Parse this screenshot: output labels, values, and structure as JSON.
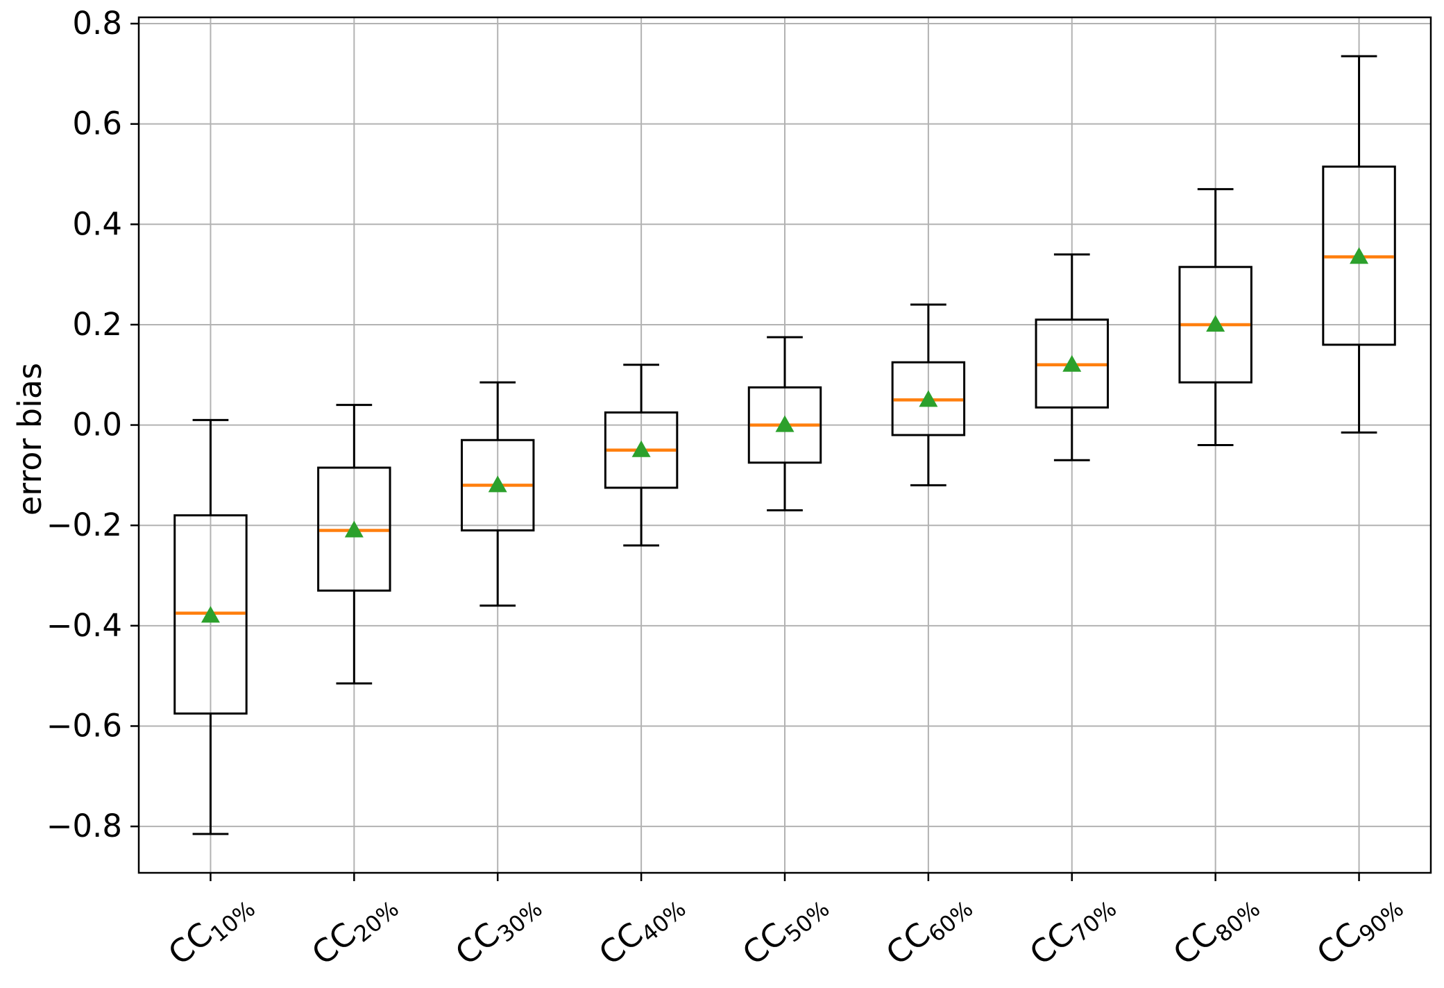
{
  "chart_data": {
    "type": "boxplot",
    "title": "",
    "xlabel": "",
    "ylabel": "error bias",
    "ylim": [
      -0.8925,
      0.8125
    ],
    "xlim": [
      0.5,
      9.5
    ],
    "y_ticks": [
      0.8,
      0.6,
      0.4,
      0.2,
      0.0,
      -0.2,
      -0.4,
      -0.6,
      -0.8
    ],
    "grid": "both",
    "legend": "none",
    "categories": [
      "CC10%",
      "CC20%",
      "CC30%",
      "CC40%",
      "CC50%",
      "CC60%",
      "CC70%",
      "CC80%",
      "CC90%"
    ],
    "category_labels": [
      {
        "base": "CC",
        "subscript": "10%"
      },
      {
        "base": "CC",
        "subscript": "20%"
      },
      {
        "base": "CC",
        "subscript": "30%"
      },
      {
        "base": "CC",
        "subscript": "40%"
      },
      {
        "base": "CC",
        "subscript": "50%"
      },
      {
        "base": "CC",
        "subscript": "60%"
      },
      {
        "base": "CC",
        "subscript": "70%"
      },
      {
        "base": "CC",
        "subscript": "80%"
      },
      {
        "base": "CC",
        "subscript": "90%"
      }
    ],
    "boxes": [
      {
        "category": "CC10%",
        "whisker_low": -0.815,
        "q1": -0.575,
        "median": -0.375,
        "q3": -0.18,
        "whisker_high": 0.01,
        "mean": -0.38
      },
      {
        "category": "CC20%",
        "whisker_low": -0.515,
        "q1": -0.33,
        "median": -0.21,
        "q3": -0.085,
        "whisker_high": 0.04,
        "mean": -0.21
      },
      {
        "category": "CC30%",
        "whisker_low": -0.36,
        "q1": -0.21,
        "median": -0.12,
        "q3": -0.03,
        "whisker_high": 0.085,
        "mean": -0.12
      },
      {
        "category": "CC40%",
        "whisker_low": -0.24,
        "q1": -0.125,
        "median": -0.05,
        "q3": 0.025,
        "whisker_high": 0.12,
        "mean": -0.05
      },
      {
        "category": "CC50%",
        "whisker_low": -0.17,
        "q1": -0.075,
        "median": 0.0,
        "q3": 0.075,
        "whisker_high": 0.175,
        "mean": 0.0
      },
      {
        "category": "CC60%",
        "whisker_low": -0.12,
        "q1": -0.02,
        "median": 0.05,
        "q3": 0.125,
        "whisker_high": 0.24,
        "mean": 0.05
      },
      {
        "category": "CC70%",
        "whisker_low": -0.07,
        "q1": 0.035,
        "median": 0.12,
        "q3": 0.21,
        "whisker_high": 0.34,
        "mean": 0.12
      },
      {
        "category": "CC80%",
        "whisker_low": -0.04,
        "q1": 0.085,
        "median": 0.2,
        "q3": 0.315,
        "whisker_high": 0.47,
        "mean": 0.2
      },
      {
        "category": "CC90%",
        "whisker_low": -0.015,
        "q1": 0.16,
        "median": 0.335,
        "q3": 0.515,
        "whisker_high": 0.735,
        "mean": 0.335
      }
    ],
    "colors": {
      "box_line": "#000000",
      "whisker": "#000000",
      "median": "#ff7f0e",
      "mean_marker": "#2ca02c",
      "grid": "#b2b2b2",
      "spine": "#000000",
      "tick_label": "#000000",
      "background": "#ffffff"
    }
  }
}
